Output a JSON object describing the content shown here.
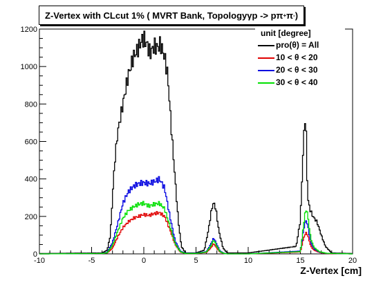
{
  "title": {
    "prefix": "Z-Vertex with CLcut 1% ( MVRT Bank, Topology ",
    "gamma": "γ",
    "middle": " p -> p ",
    "pi": "π",
    "plus": "+",
    "space": " ",
    "minus": "-",
    "suffix": " )"
  },
  "legend": {
    "header": "unit [degree]",
    "entries": [
      {
        "label": "pro(θ) = All",
        "color": "#000000"
      },
      {
        "label": "10 < θ < 20",
        "color": "#e00000"
      },
      {
        "label": "20 < θ < 30",
        "color": "#0000e0"
      },
      {
        "label": "30 < θ < 40",
        "color": "#00e000"
      }
    ]
  },
  "xlabel": "Z-Vertex [cm]",
  "chart_data": {
    "type": "line",
    "title": "Z-Vertex with CLcut 1% ( MVRT Bank, Topology γ p -> p π+ π- )",
    "xlabel": "Z-Vertex [cm]",
    "ylabel": "",
    "xlim": [
      -10,
      20
    ],
    "ylim": [
      0,
      1200
    ],
    "xticks": [
      -10,
      -5,
      0,
      5,
      10,
      15,
      20
    ],
    "yticks": [
      0,
      200,
      400,
      600,
      800,
      1000,
      1200
    ],
    "legend_position": "top-right",
    "grid": false,
    "series": [
      {
        "name": "pro(θ) = All",
        "color": "#000000",
        "x": [
          -10,
          -4,
          -3.5,
          -3.2,
          -3,
          -2.8,
          -2.5,
          -2,
          -1.5,
          -1,
          -0.5,
          -0.2,
          0,
          0.3,
          0.6,
          1,
          1.3,
          1.6,
          2,
          2.3,
          2.6,
          3,
          3.3,
          3.6,
          4,
          5,
          5.8,
          6.2,
          6.5,
          6.7,
          6.9,
          7.2,
          7.6,
          8,
          10,
          14.6,
          15,
          15.3,
          15.5,
          15.6,
          15.7,
          15.9,
          16.2,
          16.6,
          17,
          17.4,
          18,
          20
        ],
        "y": [
          2,
          5,
          20,
          100,
          300,
          480,
          650,
          800,
          950,
          1050,
          1100,
          1140,
          1150,
          1120,
          1070,
          1110,
          1100,
          1120,
          1050,
          950,
          700,
          400,
          180,
          40,
          5,
          5,
          20,
          130,
          240,
          275,
          240,
          120,
          30,
          5,
          5,
          40,
          180,
          600,
          765,
          500,
          300,
          240,
          200,
          170,
          100,
          40,
          5,
          2
        ]
      },
      {
        "name": "10 < θ < 20",
        "color": "#e00000",
        "x": [
          -10,
          -4,
          -3.5,
          -3,
          -2.5,
          -2,
          -1.5,
          -1,
          -0.5,
          0,
          0.5,
          1,
          1.5,
          2,
          2.5,
          3,
          3.5,
          4,
          5,
          6,
          6.4,
          6.7,
          7,
          7.3,
          7.7,
          8,
          10,
          15,
          15.2,
          15.4,
          15.6,
          15.8,
          16,
          16.3,
          16.8,
          17.5,
          20
        ],
        "y": [
          0,
          2,
          5,
          30,
          90,
          140,
          170,
          190,
          200,
          210,
          205,
          215,
          220,
          200,
          130,
          50,
          10,
          2,
          2,
          8,
          30,
          55,
          30,
          10,
          2,
          0,
          0,
          10,
          60,
          100,
          115,
          80,
          40,
          20,
          8,
          2,
          0
        ]
      },
      {
        "name": "20 < θ < 30",
        "color": "#0000e0",
        "x": [
          -10,
          -4,
          -3.5,
          -3,
          -2.5,
          -2,
          -1.5,
          -1,
          -0.5,
          0,
          0.5,
          1,
          1.5,
          2,
          2.5,
          3,
          3.5,
          4,
          5,
          6,
          6.4,
          6.7,
          7,
          7.3,
          7.7,
          8,
          10,
          15,
          15.2,
          15.4,
          15.6,
          15.8,
          16,
          16.3,
          16.8,
          17.5,
          20
        ],
        "y": [
          0,
          2,
          8,
          60,
          160,
          270,
          330,
          360,
          375,
          380,
          375,
          385,
          400,
          350,
          200,
          70,
          15,
          3,
          3,
          12,
          50,
          85,
          50,
          15,
          3,
          0,
          0,
          15,
          90,
          160,
          180,
          120,
          60,
          28,
          10,
          3,
          0
        ]
      },
      {
        "name": "30 < θ < 40",
        "color": "#00e000",
        "x": [
          -10,
          -4,
          -3.5,
          -3,
          -2.5,
          -2,
          -1.5,
          -1,
          -0.5,
          0,
          0.5,
          1,
          1.5,
          2,
          2.5,
          3,
          3.5,
          4,
          5,
          6,
          6.4,
          6.7,
          7,
          7.3,
          7.7,
          8,
          10,
          15,
          15.2,
          15.4,
          15.6,
          15.8,
          16,
          16.3,
          16.8,
          17.5,
          20
        ],
        "y": [
          0,
          2,
          6,
          45,
          120,
          190,
          230,
          250,
          265,
          270,
          255,
          265,
          270,
          240,
          150,
          55,
          12,
          2,
          2,
          10,
          40,
          75,
          40,
          12,
          2,
          0,
          0,
          12,
          100,
          200,
          245,
          160,
          80,
          35,
          12,
          3,
          0
        ]
      }
    ]
  }
}
